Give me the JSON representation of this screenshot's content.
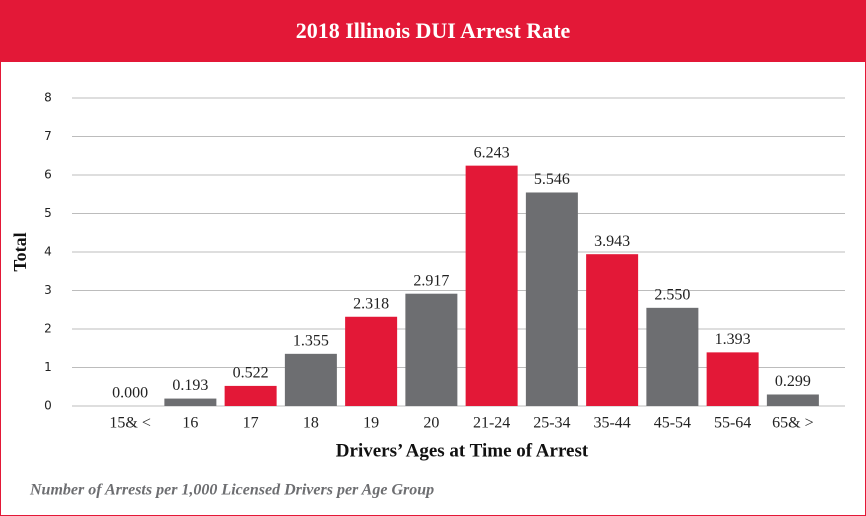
{
  "chart_data": {
    "type": "bar",
    "title": "2018 Illinois DUI Arrest Rate",
    "y_label": "Total",
    "x_label": "Drivers’ Ages at Time of Arrest",
    "footnote": "Number of Arrests per 1,000 Licensed Drivers per Age Group",
    "categories": [
      "15& <",
      "16",
      "17",
      "18",
      "19",
      "20",
      "21-24",
      "25-34",
      "35-44",
      "45-54",
      "55-64",
      "65& >"
    ],
    "values": [
      0,
      0.193,
      0.522,
      1.355,
      2.318,
      2.917,
      6.243,
      5.546,
      3.943,
      2.55,
      1.393,
      0.299
    ],
    "value_labels": [
      "0.000",
      "0.193",
      "0.522",
      "1.355",
      "2.318",
      "2.917",
      "6.243",
      "5.546",
      "3.943",
      "2.550",
      "1.393",
      "0.299"
    ],
    "colors": [
      "#e31837",
      "#6d6e71",
      "#e31837",
      "#6d6e71",
      "#e31837",
      "#6d6e71",
      "#e31837",
      "#6d6e71",
      "#e31837",
      "#6d6e71",
      "#e31837",
      "#6d6e71"
    ],
    "ylim": [
      0,
      8
    ],
    "yticks": [
      0,
      1,
      2,
      3,
      4,
      5,
      6,
      7,
      8
    ],
    "grid": true
  }
}
